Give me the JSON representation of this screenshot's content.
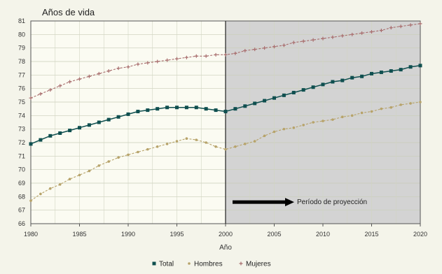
{
  "chart_data": {
    "type": "line",
    "title": "Años de vida",
    "xlabel": "Año",
    "ylabel": "",
    "xlim": [
      1980,
      2020
    ],
    "ylim": [
      66,
      81
    ],
    "x_ticks": [
      1980,
      1985,
      1990,
      1995,
      2000,
      2005,
      2010,
      2015,
      2020
    ],
    "y_ticks": [
      66,
      67,
      68,
      69,
      70,
      71,
      72,
      73,
      74,
      75,
      76,
      77,
      78,
      79,
      80,
      81
    ],
    "grid": true,
    "projection": {
      "start_year": 2000,
      "label": "Período de proyección",
      "shade_color": "#d3d3d3"
    },
    "legend": {
      "placement": "bottom",
      "items": [
        "Total",
        "Hombres",
        "Mujeres"
      ]
    },
    "series": [
      {
        "name": "Total",
        "color": "#0f4f4f",
        "marker": "square",
        "x": [
          1980,
          1981,
          1982,
          1983,
          1984,
          1985,
          1986,
          1987,
          1988,
          1989,
          1990,
          1991,
          1992,
          1993,
          1994,
          1995,
          1996,
          1997,
          1998,
          1999,
          2000,
          2001,
          2002,
          2003,
          2004,
          2005,
          2006,
          2007,
          2008,
          2009,
          2010,
          2011,
          2012,
          2013,
          2014,
          2015,
          2016,
          2017,
          2018,
          2019,
          2020
        ],
        "values": [
          71.9,
          72.2,
          72.5,
          72.7,
          72.9,
          73.1,
          73.3,
          73.5,
          73.7,
          73.9,
          74.1,
          74.3,
          74.4,
          74.5,
          74.6,
          74.6,
          74.6,
          74.6,
          74.5,
          74.4,
          74.3,
          74.5,
          74.7,
          74.9,
          75.1,
          75.3,
          75.5,
          75.7,
          75.9,
          76.1,
          76.3,
          76.5,
          76.6,
          76.8,
          76.9,
          77.1,
          77.2,
          77.3,
          77.4,
          77.6,
          77.7
        ]
      },
      {
        "name": "Hombres",
        "color": "#b7a36a",
        "marker": "circle",
        "x": [
          1980,
          1981,
          1982,
          1983,
          1984,
          1985,
          1986,
          1987,
          1988,
          1989,
          1990,
          1991,
          1992,
          1993,
          1994,
          1995,
          1996,
          1997,
          1998,
          1999,
          2000,
          2001,
          2002,
          2003,
          2004,
          2005,
          2006,
          2007,
          2008,
          2009,
          2010,
          2011,
          2012,
          2013,
          2014,
          2015,
          2016,
          2017,
          2018,
          2019,
          2020
        ],
        "values": [
          67.7,
          68.2,
          68.6,
          68.9,
          69.3,
          69.6,
          69.9,
          70.3,
          70.6,
          70.9,
          71.1,
          71.3,
          71.5,
          71.7,
          71.9,
          72.1,
          72.3,
          72.2,
          72.0,
          71.7,
          71.5,
          71.7,
          71.9,
          72.1,
          72.5,
          72.8,
          73.0,
          73.1,
          73.3,
          73.5,
          73.6,
          73.7,
          73.9,
          74.0,
          74.2,
          74.3,
          74.5,
          74.6,
          74.8,
          74.9,
          75.0
        ]
      },
      {
        "name": "Mujeres",
        "color": "#a86d6d",
        "marker": "plus",
        "x": [
          1980,
          1981,
          1982,
          1983,
          1984,
          1985,
          1986,
          1987,
          1988,
          1989,
          1990,
          1991,
          1992,
          1993,
          1994,
          1995,
          1996,
          1997,
          1998,
          1999,
          2000,
          2001,
          2002,
          2003,
          2004,
          2005,
          2006,
          2007,
          2008,
          2009,
          2010,
          2011,
          2012,
          2013,
          2014,
          2015,
          2016,
          2017,
          2018,
          2019,
          2020
        ],
        "values": [
          75.3,
          75.6,
          75.9,
          76.2,
          76.5,
          76.7,
          76.9,
          77.1,
          77.3,
          77.5,
          77.6,
          77.8,
          77.9,
          78.0,
          78.1,
          78.2,
          78.3,
          78.4,
          78.4,
          78.5,
          78.5,
          78.6,
          78.8,
          78.9,
          79.0,
          79.1,
          79.2,
          79.4,
          79.5,
          79.6,
          79.7,
          79.8,
          79.9,
          80.0,
          80.1,
          80.2,
          80.3,
          80.5,
          80.6,
          80.7,
          80.8
        ]
      }
    ]
  }
}
